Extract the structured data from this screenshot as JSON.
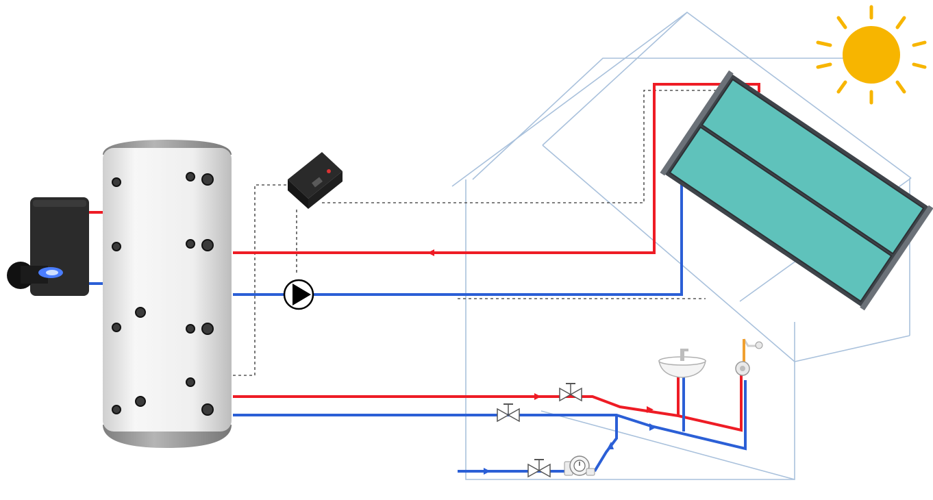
{
  "colors": {
    "background": "#ffffff",
    "hot_pipe": "#ee1c25",
    "cold_pipe": "#2b5fd6",
    "house_outline": "#a9c1dc",
    "sun": "#f7b500",
    "collector_panel": "#5fc2bb",
    "collector_frame": "#4a4f55",
    "tank_body": "#ececec",
    "tank_cap": "#9a9a9a",
    "tank_port": "#3b3b3b",
    "boiler": "#2b2b2b",
    "burner_flame": "#4a7dff",
    "controller": "#1f1f1f",
    "control_wire": "#555555",
    "valve": "#555555"
  },
  "components": [
    {
      "name": "sun-icon"
    },
    {
      "name": "house-outline"
    },
    {
      "name": "solar-collector-icon"
    },
    {
      "name": "storage-tank-icon"
    },
    {
      "name": "boiler-icon"
    },
    {
      "name": "solar-controller-icon"
    },
    {
      "name": "circulation-pump-icon"
    },
    {
      "name": "valve-icon"
    },
    {
      "name": "washbasin-icon"
    },
    {
      "name": "shower-icon"
    },
    {
      "name": "water-meter-icon"
    }
  ]
}
